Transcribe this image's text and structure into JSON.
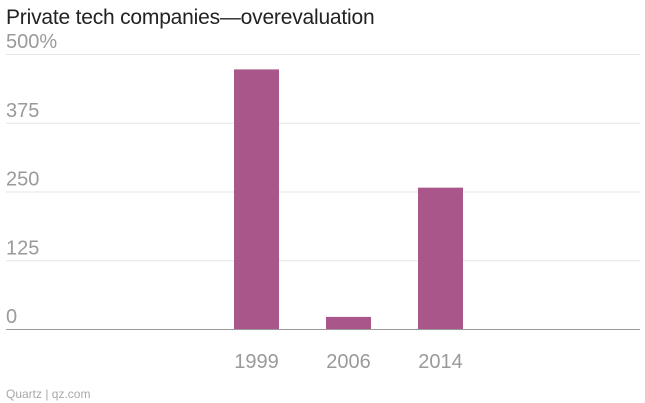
{
  "title": "Private tech companies—overevaluation",
  "source": "Quartz | qz.com",
  "colors": {
    "bar": "#a9568a",
    "grid": "#e6e6e6",
    "axis": "#9a9a9a",
    "text": "#9a9a9a"
  },
  "chart_data": {
    "type": "bar",
    "categories": [
      "1999",
      "2006",
      "2014"
    ],
    "values": [
      472,
      22,
      257
    ],
    "ylim": [
      0,
      500
    ],
    "yticks": [
      0,
      125,
      250,
      375,
      500
    ],
    "ytick_labels": [
      "0",
      "125",
      "250",
      "375",
      "500%"
    ],
    "grid": true,
    "legend": "none",
    "xlabel": "",
    "ylabel": ""
  }
}
